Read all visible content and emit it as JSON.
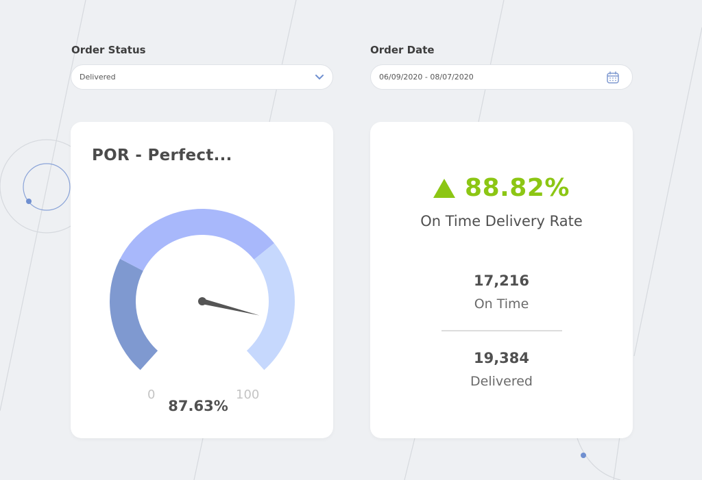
{
  "filters": {
    "order_status": {
      "label": "Order Status",
      "value": "Delivered",
      "icon": "chevron-down-icon"
    },
    "order_date": {
      "label": "Order Date",
      "value": "06/09/2020 - 08/07/2020",
      "icon": "calendar-icon"
    }
  },
  "gauge_card": {
    "title": "POR - Perfect...",
    "min_label": "0",
    "max_label": "100",
    "value_label": "87.63%",
    "value": 87.63,
    "min": 0,
    "max": 100,
    "band_colors": [
      "#7f99d0",
      "#a8b8fb",
      "#c6d8fd"
    ]
  },
  "kpi_card": {
    "rate": "88.82%",
    "rate_label": "On Time Delivery Rate",
    "trend": "up",
    "trend_color": "#8cc614",
    "on_time_value": "17,216",
    "on_time_label": "On Time",
    "delivered_value": "19,384",
    "delivered_label": "Delivered"
  }
}
